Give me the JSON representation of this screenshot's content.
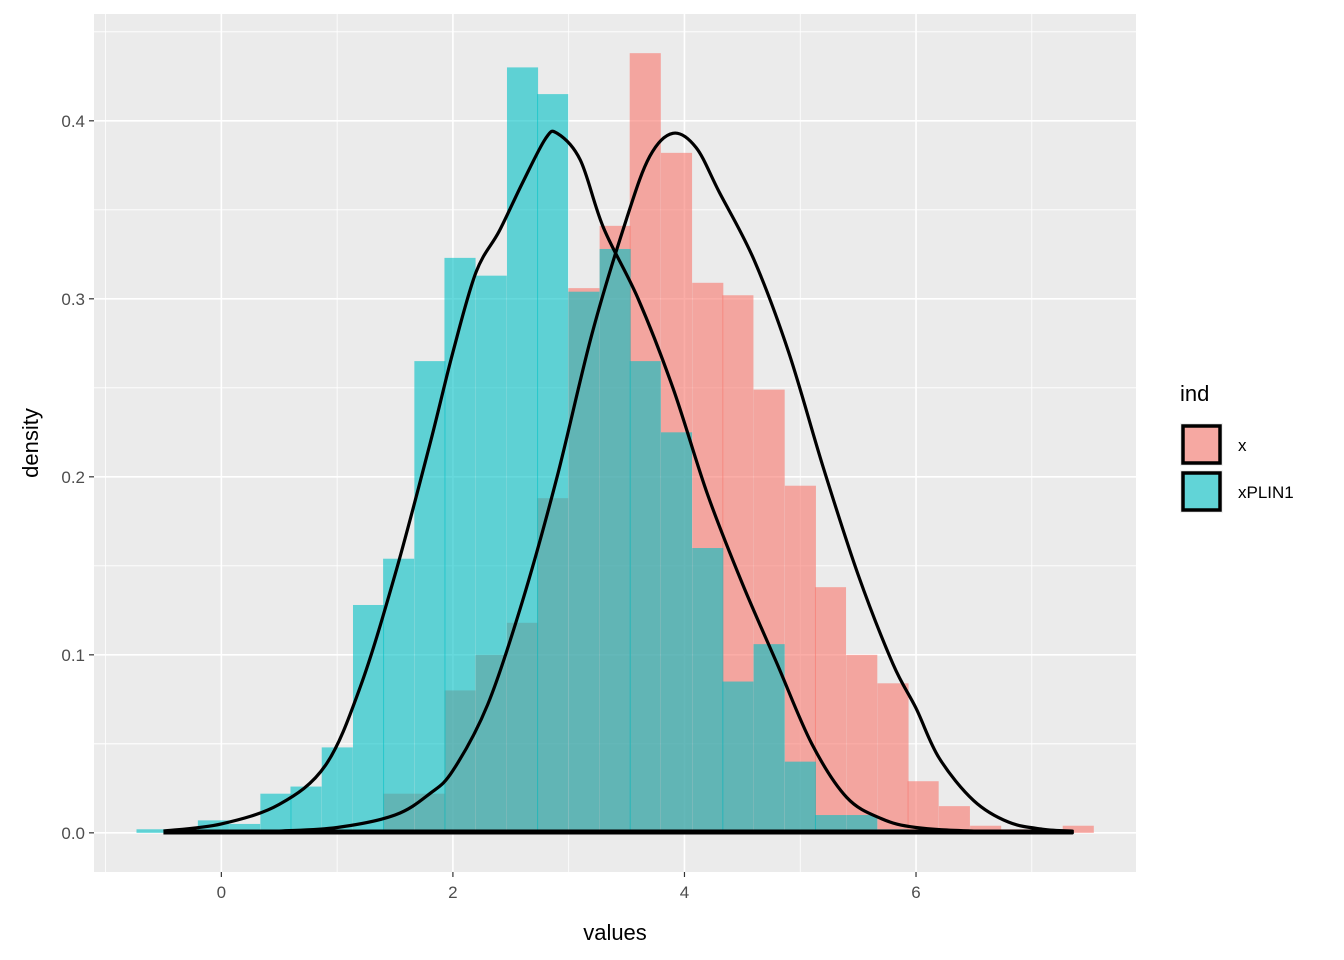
{
  "chart_data": {
    "type": "histogram+density",
    "xlabel": "values",
    "ylabel": "density",
    "xlim": [
      -1.1,
      7.9
    ],
    "ylim": [
      -0.022,
      0.46
    ],
    "x_ticks": [
      0,
      2,
      4,
      6
    ],
    "x_tick_labels": [
      "0",
      "2",
      "4",
      "6"
    ],
    "y_ticks": [
      0.0,
      0.1,
      0.2,
      0.3,
      0.4
    ],
    "y_tick_labels": [
      "0.0",
      "0.1",
      "0.2",
      "0.3",
      "0.4"
    ],
    "grid": true,
    "legend": {
      "title": "ind",
      "position": "right",
      "items": [
        {
          "label": "x",
          "color": "#F8766D"
        },
        {
          "label": "xPLIN1",
          "color": "#00BFC4"
        }
      ]
    },
    "bin_width": 0.266,
    "series": [
      {
        "name": "x",
        "color": "#F8766D",
        "bins": [
          [
            -0.6,
            0.0
          ],
          [
            -0.33,
            0.0
          ],
          [
            -0.07,
            0.0
          ],
          [
            0.2,
            0.0
          ],
          [
            0.47,
            0.0
          ],
          [
            0.73,
            0.0
          ],
          [
            1.0,
            0.0
          ],
          [
            1.27,
            0.0
          ],
          [
            1.53,
            0.022
          ],
          [
            1.8,
            0.022
          ],
          [
            2.06,
            0.08
          ],
          [
            2.33,
            0.1
          ],
          [
            2.6,
            0.118
          ],
          [
            2.86,
            0.188
          ],
          [
            3.13,
            0.306
          ],
          [
            3.4,
            0.341
          ],
          [
            3.66,
            0.438
          ],
          [
            3.93,
            0.382
          ],
          [
            4.2,
            0.309
          ],
          [
            4.46,
            0.302
          ],
          [
            4.73,
            0.249
          ],
          [
            5.0,
            0.195
          ],
          [
            5.26,
            0.138
          ],
          [
            5.53,
            0.1
          ],
          [
            5.8,
            0.084
          ],
          [
            6.06,
            0.029
          ],
          [
            6.33,
            0.015
          ],
          [
            6.6,
            0.004
          ],
          [
            6.86,
            0.002
          ],
          [
            7.13,
            0.002
          ],
          [
            7.4,
            0.004
          ]
        ],
        "density": [
          [
            -0.5,
            0.0
          ],
          [
            0.0,
            0.0
          ],
          [
            0.5,
            0.001
          ],
          [
            1.0,
            0.003
          ],
          [
            1.5,
            0.01
          ],
          [
            1.8,
            0.022
          ],
          [
            2.0,
            0.035
          ],
          [
            2.3,
            0.072
          ],
          [
            2.6,
            0.13
          ],
          [
            2.9,
            0.2
          ],
          [
            3.2,
            0.28
          ],
          [
            3.5,
            0.345
          ],
          [
            3.7,
            0.38
          ],
          [
            3.9,
            0.393
          ],
          [
            4.1,
            0.385
          ],
          [
            4.3,
            0.36
          ],
          [
            4.6,
            0.322
          ],
          [
            4.9,
            0.27
          ],
          [
            5.2,
            0.205
          ],
          [
            5.5,
            0.145
          ],
          [
            5.8,
            0.095
          ],
          [
            6.0,
            0.07
          ],
          [
            6.2,
            0.042
          ],
          [
            6.5,
            0.018
          ],
          [
            6.8,
            0.006
          ],
          [
            7.1,
            0.002
          ],
          [
            7.35,
            0.001
          ]
        ]
      },
      {
        "name": "xPLIN1",
        "color": "#00BFC4",
        "bins": [
          [
            -0.6,
            0.002
          ],
          [
            -0.33,
            0.002
          ],
          [
            -0.07,
            0.007
          ],
          [
            0.2,
            0.005
          ],
          [
            0.47,
            0.022
          ],
          [
            0.73,
            0.026
          ],
          [
            1.0,
            0.048
          ],
          [
            1.27,
            0.128
          ],
          [
            1.53,
            0.154
          ],
          [
            1.8,
            0.265
          ],
          [
            2.06,
            0.323
          ],
          [
            2.33,
            0.313
          ],
          [
            2.6,
            0.43
          ],
          [
            2.86,
            0.415
          ],
          [
            3.13,
            0.304
          ],
          [
            3.4,
            0.328
          ],
          [
            3.66,
            0.265
          ],
          [
            3.93,
            0.225
          ],
          [
            4.2,
            0.16
          ],
          [
            4.46,
            0.085
          ],
          [
            4.73,
            0.106
          ],
          [
            5.0,
            0.04
          ],
          [
            5.26,
            0.01
          ],
          [
            5.53,
            0.01
          ],
          [
            5.8,
            0.002
          ],
          [
            6.06,
            0.0
          ],
          [
            6.33,
            0.0
          ],
          [
            6.6,
            0.0
          ],
          [
            6.86,
            0.0
          ],
          [
            7.13,
            0.0
          ],
          [
            7.4,
            0.0
          ]
        ],
        "density": [
          [
            -0.5,
            0.001
          ],
          [
            0.0,
            0.005
          ],
          [
            0.5,
            0.016
          ],
          [
            0.9,
            0.038
          ],
          [
            1.2,
            0.082
          ],
          [
            1.5,
            0.145
          ],
          [
            1.8,
            0.218
          ],
          [
            2.0,
            0.27
          ],
          [
            2.2,
            0.315
          ],
          [
            2.4,
            0.338
          ],
          [
            2.6,
            0.365
          ],
          [
            2.8,
            0.39
          ],
          [
            2.9,
            0.393
          ],
          [
            3.1,
            0.378
          ],
          [
            3.3,
            0.34
          ],
          [
            3.6,
            0.3
          ],
          [
            3.9,
            0.25
          ],
          [
            4.2,
            0.19
          ],
          [
            4.5,
            0.14
          ],
          [
            4.8,
            0.095
          ],
          [
            5.1,
            0.05
          ],
          [
            5.4,
            0.02
          ],
          [
            5.7,
            0.008
          ],
          [
            6.0,
            0.003
          ],
          [
            6.5,
            0.001
          ],
          [
            7.35,
            0.0
          ]
        ]
      }
    ]
  }
}
